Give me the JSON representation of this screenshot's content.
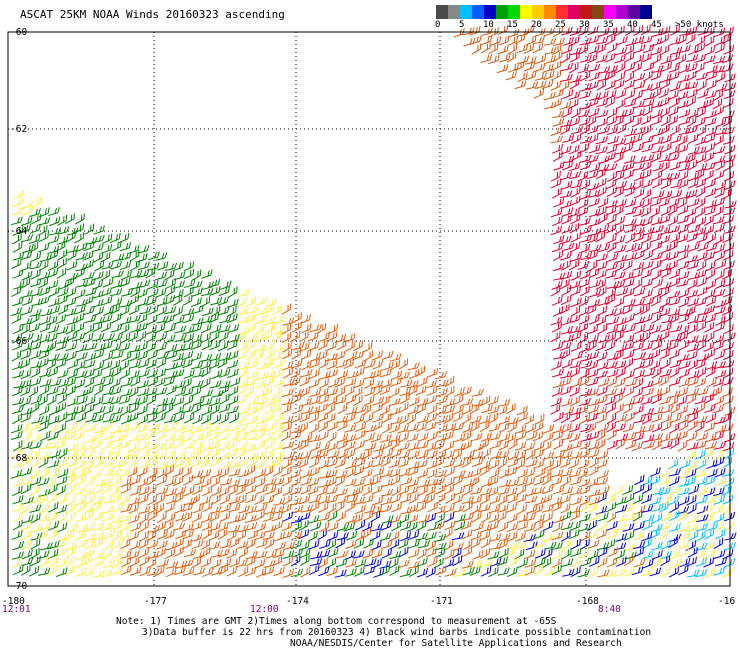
{
  "title": "ASCAT 25KM NOAA Winds 20160323 ascending",
  "legend": {
    "colors": [
      "#4a4a4a",
      "#888888",
      "#00c0ff",
      "#0060ff",
      "#0000c8",
      "#00a000",
      "#00d800",
      "#ffff00",
      "#ffcc00",
      "#ff8c00",
      "#ff3030",
      "#e00060",
      "#c01818",
      "#8b4513",
      "#ff00ff",
      "#b000d0",
      "#6000a0",
      "#000090"
    ],
    "labels": [
      "0",
      "5",
      "10",
      "15",
      "20",
      "25",
      "30",
      "35",
      "40",
      "45",
      ">50 knots"
    ]
  },
  "axes": {
    "lat_labels": [
      "-60",
      "-62",
      "-64",
      "-66",
      "-68",
      "-70"
    ],
    "lon_labels": [
      "-180",
      "-177",
      "-174",
      "-171",
      "-168",
      "-16"
    ]
  },
  "times": {
    "left": "12:01",
    "middle": "12:00",
    "right": "8:40",
    "color": "#800080"
  },
  "note": {
    "line1": "Note: 1) Times are GMT 2)Times along bottom correspond to measurement at -65S",
    "line2": "3)Data buffer is 22 hrs from 20160323 4) Black wind barbs indicate possible contamination",
    "line3": "NOAA/NESDIS/Center for Satellite Applications and Research"
  },
  "wind_colors": {
    "green": "#008000",
    "yellow": "#ffee44",
    "orange": "#e06010",
    "red": "#dd0030",
    "blue": "#0000cc",
    "cyan": "#00bfff"
  }
}
